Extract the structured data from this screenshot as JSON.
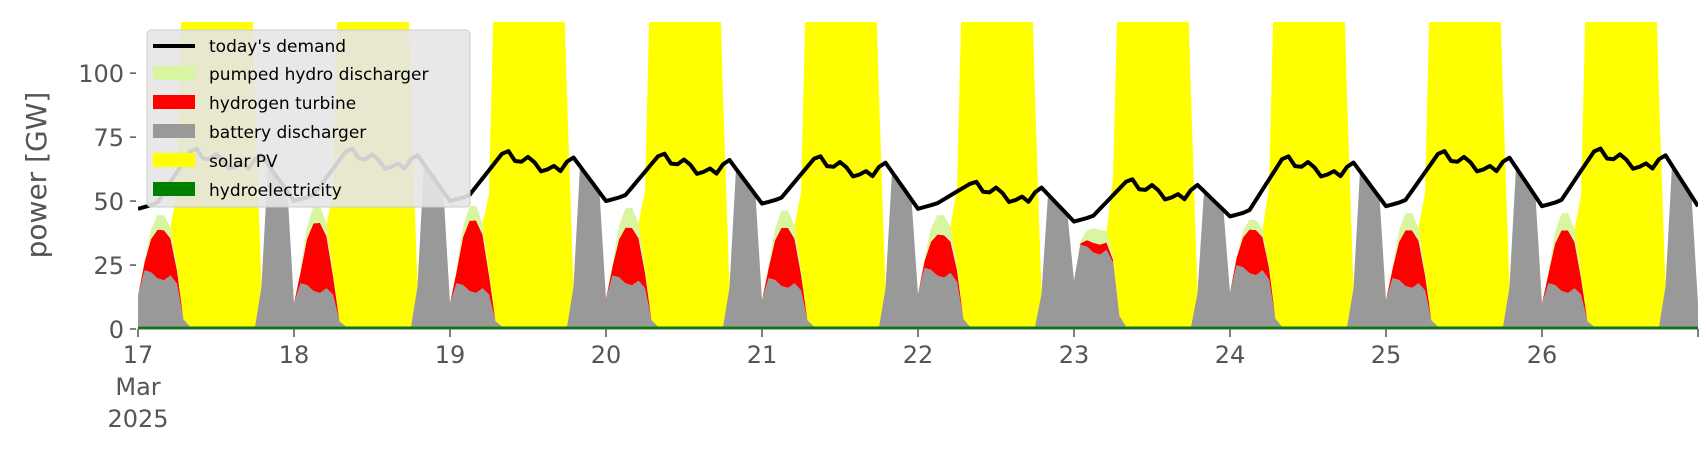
{
  "chart_data": {
    "type": "area",
    "ylabel": "power [GW]",
    "xlabel": "",
    "ylim": [
      0,
      120
    ],
    "yticks": [
      0,
      25,
      50,
      75,
      100
    ],
    "x_start": "2025-03-17",
    "x_end": "2025-03-27",
    "xtick_labels": [
      {
        "day": 17,
        "lines": [
          "17",
          "Mar",
          "2025"
        ]
      },
      {
        "day": 18,
        "lines": [
          "18"
        ]
      },
      {
        "day": 19,
        "lines": [
          "19"
        ]
      },
      {
        "day": 20,
        "lines": [
          "20"
        ]
      },
      {
        "day": 21,
        "lines": [
          "21"
        ]
      },
      {
        "day": 22,
        "lines": [
          "22"
        ]
      },
      {
        "day": 23,
        "lines": [
          "23"
        ]
      },
      {
        "day": 24,
        "lines": [
          "24"
        ]
      },
      {
        "day": 25,
        "lines": [
          "25"
        ]
      },
      {
        "day": 26,
        "lines": [
          "26"
        ]
      }
    ],
    "series": [
      {
        "name": "hydroelectricity",
        "color": "#008000",
        "typical_gw": 1
      },
      {
        "name": "battery discharger",
        "color": "#999999",
        "night_plateau_gw": [
          20,
          15,
          15,
          18,
          17,
          21,
          30,
          22,
          17,
          15
        ]
      },
      {
        "name": "hydrogen turbine",
        "color": "#ff0000",
        "night_top_gw": [
          40,
          43,
          44,
          41,
          41,
          38,
          34,
          40,
          40,
          40
        ]
      },
      {
        "name": "pumped hydro discharger",
        "color": "#d8f5a0",
        "night_top_gw": [
          46,
          50,
          50,
          49,
          48,
          46,
          40,
          44,
          47,
          47
        ]
      },
      {
        "name": "solar PV",
        "color": "#ffff00",
        "daytime_peak_gw": "above 120"
      }
    ],
    "demand": {
      "name": "today's demand",
      "color": "#000000",
      "nightly_min_gw": [
        47,
        50,
        50,
        50,
        49,
        47,
        42,
        44,
        48,
        48
      ],
      "daily_peak_gw": [
        70,
        70,
        69,
        68,
        67,
        57,
        58,
        67,
        69,
        70
      ]
    },
    "legend": {
      "placement": "top-left",
      "entries": [
        "today's demand",
        "pumped hydro discharger",
        "hydrogen turbine",
        "battery discharger",
        "solar PV",
        "hydroelectricity"
      ]
    },
    "grid": false
  }
}
